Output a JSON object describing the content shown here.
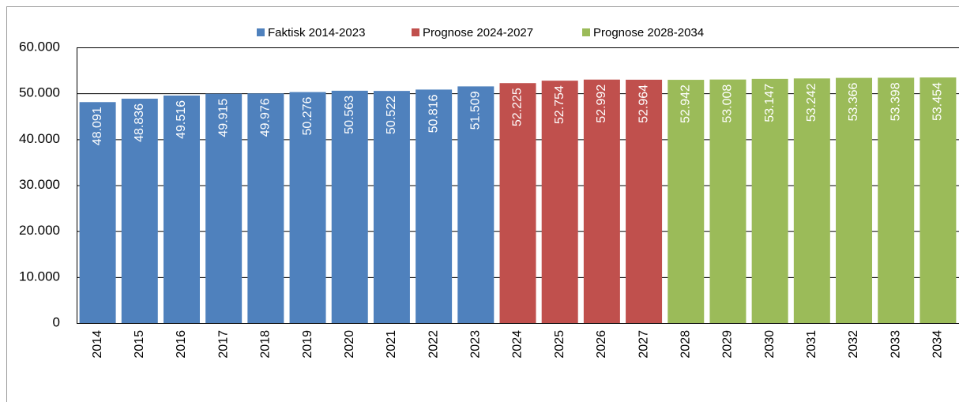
{
  "chart_data": {
    "type": "bar",
    "categories": [
      "2014",
      "2015",
      "2016",
      "2017",
      "2018",
      "2019",
      "2020",
      "2021",
      "2022",
      "2023",
      "2024",
      "2025",
      "2026",
      "2027",
      "2028",
      "2029",
      "2030",
      "2031",
      "2032",
      "2033",
      "2034"
    ],
    "series": [
      {
        "name": "Faktisk 2014-2023",
        "color": "#4f81bd",
        "values": [
          48091,
          48836,
          49516,
          49915,
          49976,
          50276,
          50563,
          50522,
          50816,
          51509,
          null,
          null,
          null,
          null,
          null,
          null,
          null,
          null,
          null,
          null,
          null
        ],
        "value_labels": [
          "48.091",
          "48.836",
          "49.516",
          "49.915",
          "49.976",
          "50.276",
          "50.563",
          "50.522",
          "50.816",
          "51.509",
          null,
          null,
          null,
          null,
          null,
          null,
          null,
          null,
          null,
          null,
          null
        ]
      },
      {
        "name": "Prognose 2024-2027",
        "color": "#c0504d",
        "values": [
          null,
          null,
          null,
          null,
          null,
          null,
          null,
          null,
          null,
          null,
          52225,
          52754,
          52992,
          52964,
          null,
          null,
          null,
          null,
          null,
          null,
          null
        ],
        "value_labels": [
          null,
          null,
          null,
          null,
          null,
          null,
          null,
          null,
          null,
          null,
          "52.225",
          "52.754",
          "52.992",
          "52.964",
          null,
          null,
          null,
          null,
          null,
          null,
          null
        ]
      },
      {
        "name": "Prognose 2028-2034",
        "color": "#9bbb59",
        "values": [
          null,
          null,
          null,
          null,
          null,
          null,
          null,
          null,
          null,
          null,
          null,
          null,
          null,
          null,
          52942,
          53008,
          53147,
          53242,
          53366,
          53398,
          53454
        ],
        "value_labels": [
          null,
          null,
          null,
          null,
          null,
          null,
          null,
          null,
          null,
          null,
          null,
          null,
          null,
          null,
          "52.942",
          "53.008",
          "53.147",
          "53.242",
          "53.366",
          "53.398",
          "53.454"
        ]
      }
    ],
    "ylim": [
      0,
      60000
    ],
    "yticks": [
      0,
      {
        "value": 10000,
        "label": "10.000"
      },
      {
        "value": 20000,
        "label": "20.000"
      },
      {
        "value": 30000,
        "label": "30.000"
      },
      {
        "value": 40000,
        "label": "40.000"
      },
      {
        "value": 50000,
        "label": "50.000"
      },
      {
        "value": 60000,
        "label": "60.000"
      }
    ],
    "grid": true,
    "legend": "top"
  }
}
